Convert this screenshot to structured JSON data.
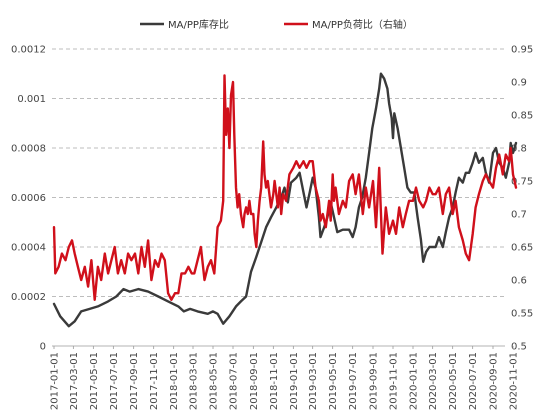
{
  "chart_data": {
    "type": "line",
    "title": "",
    "x_tick_labels": [
      "2017-01-01",
      "2017-03-01",
      "2017-05-01",
      "2017-07-01",
      "2017-09-01",
      "2017-11-01",
      "2018-01-01",
      "2018-03-01",
      "2018-05-01",
      "2018-07-01",
      "2018-09-01",
      "2018-11-01",
      "2019-01-01",
      "2019-03-01",
      "2019-05-01",
      "2019-07-01",
      "2019-09-01",
      "2019-11-01",
      "2020-01-01",
      "2020-03-01",
      "2020-05-01",
      "2020-07-01",
      "2020-09-01",
      "2020-11-01"
    ],
    "y_left": {
      "ticks": [
        "0",
        "0.0002",
        "0.0004",
        "0.0006",
        "0.0008",
        "0.001",
        "0.0012"
      ],
      "ylim": [
        0,
        0.0012
      ]
    },
    "y_right": {
      "ticks": [
        "0.5",
        "0.55",
        "0.6",
        "0.65",
        "0.7",
        "0.75",
        "0.8",
        "0.85",
        "0.9",
        "0.95"
      ],
      "ylim": [
        0.5,
        0.95
      ]
    },
    "grid": "horizontal dashed",
    "legend_position": "top-center",
    "series": [
      {
        "name": "MA/PP库存比",
        "axis": "left",
        "color": "#3a3a3a",
        "points": [
          [
            "2017-01-01",
            0.00017
          ],
          [
            "2017-01-20",
            0.00012
          ],
          [
            "2017-02-15",
            8e-05
          ],
          [
            "2017-03-05",
            0.0001
          ],
          [
            "2017-03-25",
            0.00014
          ],
          [
            "2017-04-20",
            0.00015
          ],
          [
            "2017-05-15",
            0.00016
          ],
          [
            "2017-06-15",
            0.00018
          ],
          [
            "2017-07-10",
            0.0002
          ],
          [
            "2017-08-01",
            0.00023
          ],
          [
            "2017-08-20",
            0.00022
          ],
          [
            "2017-09-15",
            0.00023
          ],
          [
            "2017-10-15",
            0.00022
          ],
          [
            "2017-11-15",
            0.0002
          ],
          [
            "2017-12-15",
            0.00018
          ],
          [
            "2018-01-15",
            0.00016
          ],
          [
            "2018-02-01",
            0.00014
          ],
          [
            "2018-02-20",
            0.00015
          ],
          [
            "2018-03-15",
            0.00014
          ],
          [
            "2018-04-15",
            0.00013
          ],
          [
            "2018-05-01",
            0.00014
          ],
          [
            "2018-05-15",
            0.00013
          ],
          [
            "2018-06-01",
            9e-05
          ],
          [
            "2018-06-20",
            0.00012
          ],
          [
            "2018-07-10",
            0.00016
          ],
          [
            "2018-07-25",
            0.00018
          ],
          [
            "2018-08-10",
            0.0002
          ],
          [
            "2018-08-25",
            0.0003
          ],
          [
            "2018-09-10",
            0.00036
          ],
          [
            "2018-09-25",
            0.00042
          ],
          [
            "2018-10-10",
            0.00048
          ],
          [
            "2018-10-25",
            0.00052
          ],
          [
            "2018-11-10",
            0.00056
          ],
          [
            "2018-11-25",
            0.0006
          ],
          [
            "2018-12-05",
            0.00064
          ],
          [
            "2018-12-15",
            0.00058
          ],
          [
            "2018-12-25",
            0.00066
          ],
          [
            "2019-01-10",
            0.00068
          ],
          [
            "2019-01-20",
            0.0007
          ],
          [
            "2019-02-01",
            0.00062
          ],
          [
            "2019-02-10",
            0.00056
          ],
          [
            "2019-02-20",
            0.00062
          ],
          [
            "2019-03-01",
            0.00068
          ],
          [
            "2019-03-10",
            0.00064
          ],
          [
            "2019-03-20",
            0.00052
          ],
          [
            "2019-03-25",
            0.00044
          ],
          [
            "2019-04-05",
            0.00048
          ],
          [
            "2019-04-15",
            0.00052
          ],
          [
            "2019-04-25",
            0.00058
          ],
          [
            "2019-05-05",
            0.00052
          ],
          [
            "2019-05-15",
            0.00046
          ],
          [
            "2019-06-01",
            0.00047
          ],
          [
            "2019-06-20",
            0.00047
          ],
          [
            "2019-07-01",
            0.00044
          ],
          [
            "2019-07-10",
            0.00048
          ],
          [
            "2019-07-20",
            0.00056
          ],
          [
            "2019-07-30",
            0.0006
          ],
          [
            "2019-08-10",
            0.00068
          ],
          [
            "2019-08-20",
            0.00078
          ],
          [
            "2019-08-30",
            0.00088
          ],
          [
            "2019-09-10",
            0.00096
          ],
          [
            "2019-09-20",
            0.00104
          ],
          [
            "2019-09-25",
            0.0011
          ],
          [
            "2019-10-05",
            0.00108
          ],
          [
            "2019-10-15",
            0.00104
          ],
          [
            "2019-10-20",
            0.00098
          ],
          [
            "2019-10-28",
            0.00092
          ],
          [
            "2019-11-01",
            0.00084
          ],
          [
            "2019-11-05",
            0.00094
          ],
          [
            "2019-11-15",
            0.00088
          ],
          [
            "2019-11-25",
            0.0008
          ],
          [
            "2019-12-05",
            0.00072
          ],
          [
            "2019-12-15",
            0.00064
          ],
          [
            "2019-12-25",
            0.00062
          ],
          [
            "2020-01-05",
            0.00062
          ],
          [
            "2020-01-15",
            0.00052
          ],
          [
            "2020-01-25",
            0.00043
          ],
          [
            "2020-02-01",
            0.00034
          ],
          [
            "2020-02-10",
            0.00038
          ],
          [
            "2020-02-20",
            0.0004
          ],
          [
            "2020-03-10",
            0.0004
          ],
          [
            "2020-03-20",
            0.00044
          ],
          [
            "2020-04-01",
            0.0004
          ],
          [
            "2020-04-10",
            0.00046
          ],
          [
            "2020-04-20",
            0.00052
          ],
          [
            "2020-05-01",
            0.00056
          ],
          [
            "2020-05-10",
            0.00062
          ],
          [
            "2020-05-20",
            0.00068
          ],
          [
            "2020-06-01",
            0.00066
          ],
          [
            "2020-06-10",
            0.0007
          ],
          [
            "2020-06-20",
            0.0007
          ],
          [
            "2020-07-01",
            0.00074
          ],
          [
            "2020-07-10",
            0.00078
          ],
          [
            "2020-07-20",
            0.00074
          ],
          [
            "2020-08-01",
            0.00076
          ],
          [
            "2020-08-10",
            0.0007
          ],
          [
            "2020-08-20",
            0.00066
          ],
          [
            "2020-09-01",
            0.00078
          ],
          [
            "2020-09-10",
            0.0008
          ],
          [
            "2020-09-20",
            0.00074
          ],
          [
            "2020-10-01",
            0.00072
          ],
          [
            "2020-10-10",
            0.00068
          ],
          [
            "2020-10-20",
            0.00074
          ],
          [
            "2020-10-25",
            0.00082
          ],
          [
            "2020-11-01",
            0.00078
          ],
          [
            "2020-11-10",
            0.00082
          ]
        ]
      },
      {
        "name": "MA/PP负荷比（右轴）",
        "axis": "right",
        "color": "#d0101b",
        "points": [
          [
            "2017-01-01",
            0.68
          ],
          [
            "2017-01-05",
            0.61
          ],
          [
            "2017-01-15",
            0.62
          ],
          [
            "2017-01-25",
            0.64
          ],
          [
            "2017-02-05",
            0.63
          ],
          [
            "2017-02-15",
            0.65
          ],
          [
            "2017-02-25",
            0.66
          ],
          [
            "2017-03-05",
            0.64
          ],
          [
            "2017-03-15",
            0.62
          ],
          [
            "2017-03-25",
            0.6
          ],
          [
            "2017-04-05",
            0.62
          ],
          [
            "2017-04-15",
            0.59
          ],
          [
            "2017-04-25",
            0.63
          ],
          [
            "2017-05-05",
            0.57
          ],
          [
            "2017-05-15",
            0.62
          ],
          [
            "2017-05-25",
            0.6
          ],
          [
            "2017-06-05",
            0.64
          ],
          [
            "2017-06-15",
            0.61
          ],
          [
            "2017-06-25",
            0.63
          ],
          [
            "2017-07-05",
            0.65
          ],
          [
            "2017-07-15",
            0.61
          ],
          [
            "2017-07-25",
            0.63
          ],
          [
            "2017-08-05",
            0.61
          ],
          [
            "2017-08-15",
            0.64
          ],
          [
            "2017-08-25",
            0.63
          ],
          [
            "2017-09-05",
            0.64
          ],
          [
            "2017-09-15",
            0.61
          ],
          [
            "2017-09-25",
            0.65
          ],
          [
            "2017-10-05",
            0.62
          ],
          [
            "2017-10-15",
            0.66
          ],
          [
            "2017-10-25",
            0.6
          ],
          [
            "2017-11-05",
            0.63
          ],
          [
            "2017-11-15",
            0.62
          ],
          [
            "2017-11-25",
            0.64
          ],
          [
            "2017-12-05",
            0.63
          ],
          [
            "2017-12-15",
            0.58
          ],
          [
            "2017-12-25",
            0.57
          ],
          [
            "2018-01-05",
            0.58
          ],
          [
            "2018-01-15",
            0.58
          ],
          [
            "2018-01-25",
            0.61
          ],
          [
            "2018-02-05",
            0.61
          ],
          [
            "2018-02-15",
            0.62
          ],
          [
            "2018-02-25",
            0.61
          ],
          [
            "2018-03-05",
            0.61
          ],
          [
            "2018-03-15",
            0.63
          ],
          [
            "2018-03-25",
            0.65
          ],
          [
            "2018-04-05",
            0.6
          ],
          [
            "2018-04-15",
            0.62
          ],
          [
            "2018-04-25",
            0.63
          ],
          [
            "2018-05-05",
            0.61
          ],
          [
            "2018-05-15",
            0.68
          ],
          [
            "2018-05-25",
            0.69
          ],
          [
            "2018-06-01",
            0.72
          ],
          [
            "2018-06-05",
            0.91
          ],
          [
            "2018-06-10",
            0.82
          ],
          [
            "2018-06-15",
            0.86
          ],
          [
            "2018-06-20",
            0.8
          ],
          [
            "2018-06-25",
            0.88
          ],
          [
            "2018-07-01",
            0.9
          ],
          [
            "2018-07-05",
            0.82
          ],
          [
            "2018-07-10",
            0.74
          ],
          [
            "2018-07-15",
            0.71
          ],
          [
            "2018-07-20",
            0.73
          ],
          [
            "2018-07-25",
            0.7
          ],
          [
            "2018-08-01",
            0.68
          ],
          [
            "2018-08-05",
            0.7
          ],
          [
            "2018-08-10",
            0.71
          ],
          [
            "2018-08-15",
            0.7
          ],
          [
            "2018-08-20",
            0.72
          ],
          [
            "2018-08-25",
            0.7
          ],
          [
            "2018-09-01",
            0.7
          ],
          [
            "2018-09-05",
            0.67
          ],
          [
            "2018-09-10",
            0.65
          ],
          [
            "2018-09-15",
            0.69
          ],
          [
            "2018-09-20",
            0.72
          ],
          [
            "2018-09-25",
            0.74
          ],
          [
            "2018-10-01",
            0.81
          ],
          [
            "2018-10-05",
            0.76
          ],
          [
            "2018-10-10",
            0.74
          ],
          [
            "2018-10-15",
            0.75
          ],
          [
            "2018-10-20",
            0.73
          ],
          [
            "2018-10-25",
            0.71
          ],
          [
            "2018-11-01",
            0.73
          ],
          [
            "2018-11-05",
            0.75
          ],
          [
            "2018-11-10",
            0.73
          ],
          [
            "2018-11-15",
            0.71
          ],
          [
            "2018-11-20",
            0.74
          ],
          [
            "2018-11-25",
            0.7
          ],
          [
            "2018-12-01",
            0.73
          ],
          [
            "2018-12-10",
            0.72
          ],
          [
            "2018-12-20",
            0.76
          ],
          [
            "2019-01-01",
            0.77
          ],
          [
            "2019-01-10",
            0.78
          ],
          [
            "2019-01-20",
            0.77
          ],
          [
            "2019-02-01",
            0.78
          ],
          [
            "2019-02-10",
            0.77
          ],
          [
            "2019-02-20",
            0.78
          ],
          [
            "2019-03-01",
            0.78
          ],
          [
            "2019-03-10",
            0.74
          ],
          [
            "2019-03-20",
            0.72
          ],
          [
            "2019-03-25",
            0.69
          ],
          [
            "2019-04-01",
            0.7
          ],
          [
            "2019-04-10",
            0.68
          ],
          [
            "2019-04-20",
            0.72
          ],
          [
            "2019-04-25",
            0.69
          ],
          [
            "2019-05-01",
            0.76
          ],
          [
            "2019-05-05",
            0.72
          ],
          [
            "2019-05-10",
            0.74
          ],
          [
            "2019-05-20",
            0.7
          ],
          [
            "2019-06-01",
            0.72
          ],
          [
            "2019-06-10",
            0.71
          ],
          [
            "2019-06-20",
            0.75
          ],
          [
            "2019-07-01",
            0.76
          ],
          [
            "2019-07-10",
            0.73
          ],
          [
            "2019-07-20",
            0.76
          ],
          [
            "2019-08-01",
            0.7
          ],
          [
            "2019-08-10",
            0.74
          ],
          [
            "2019-08-20",
            0.71
          ],
          [
            "2019-09-01",
            0.75
          ],
          [
            "2019-09-10",
            0.68
          ],
          [
            "2019-09-20",
            0.77
          ],
          [
            "2019-09-30",
            0.64
          ],
          [
            "2019-10-10",
            0.71
          ],
          [
            "2019-10-20",
            0.67
          ],
          [
            "2019-11-01",
            0.69
          ],
          [
            "2019-11-10",
            0.67
          ],
          [
            "2019-11-20",
            0.71
          ],
          [
            "2019-12-01",
            0.68
          ],
          [
            "2019-12-10",
            0.7
          ],
          [
            "2019-12-20",
            0.72
          ],
          [
            "2020-01-01",
            0.72
          ],
          [
            "2020-01-10",
            0.74
          ],
          [
            "2020-01-20",
            0.72
          ],
          [
            "2020-02-01",
            0.71
          ],
          [
            "2020-02-10",
            0.72
          ],
          [
            "2020-02-20",
            0.74
          ],
          [
            "2020-03-01",
            0.73
          ],
          [
            "2020-03-10",
            0.73
          ],
          [
            "2020-03-20",
            0.74
          ],
          [
            "2020-04-01",
            0.7
          ],
          [
            "2020-04-10",
            0.73
          ],
          [
            "2020-04-20",
            0.74
          ],
          [
            "2020-05-01",
            0.7
          ],
          [
            "2020-05-10",
            0.72
          ],
          [
            "2020-05-20",
            0.68
          ],
          [
            "2020-06-01",
            0.66
          ],
          [
            "2020-06-10",
            0.64
          ],
          [
            "2020-06-20",
            0.63
          ],
          [
            "2020-07-01",
            0.67
          ],
          [
            "2020-07-10",
            0.71
          ],
          [
            "2020-07-20",
            0.73
          ],
          [
            "2020-08-01",
            0.75
          ],
          [
            "2020-08-10",
            0.76
          ],
          [
            "2020-08-20",
            0.75
          ],
          [
            "2020-09-01",
            0.74
          ],
          [
            "2020-09-10",
            0.77
          ],
          [
            "2020-09-20",
            0.79
          ],
          [
            "2020-10-01",
            0.76
          ],
          [
            "2020-10-10",
            0.79
          ],
          [
            "2020-10-20",
            0.78
          ],
          [
            "2020-10-25",
            0.8
          ],
          [
            "2020-11-01",
            0.76
          ],
          [
            "2020-11-10",
            0.74
          ]
        ]
      }
    ]
  }
}
